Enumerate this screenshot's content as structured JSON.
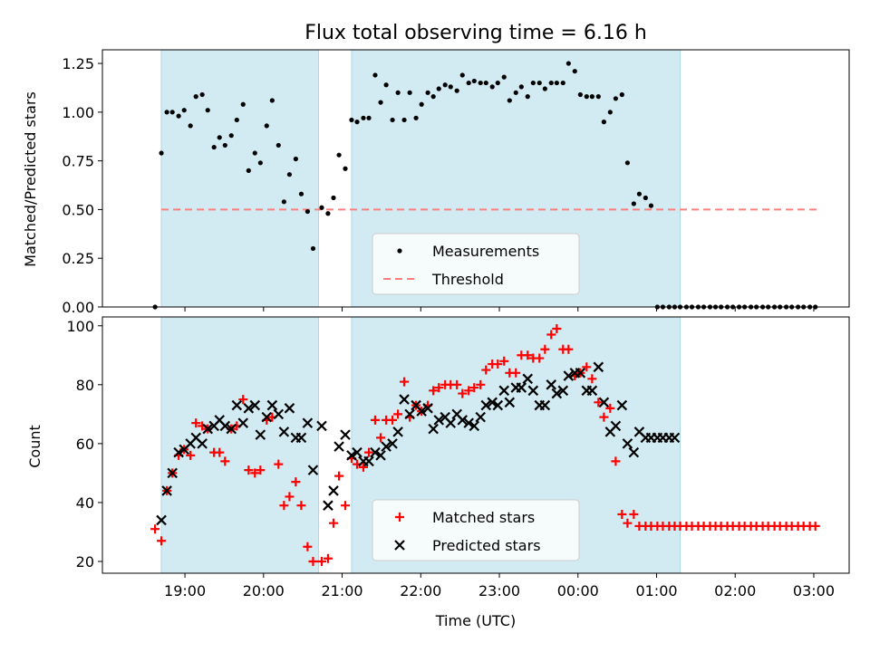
{
  "chart_data": {
    "type": "scatter",
    "title": "Flux total observing time = 6.16 h",
    "xlabel": "Time (UTC)",
    "x_unit": "UTC time of day; values are hours after 00:00 on the first night",
    "x_range": [
      17.95,
      27.45
    ],
    "x_ticks": [
      19,
      20,
      21,
      22,
      23,
      24,
      25,
      26,
      27
    ],
    "x_tick_labels": [
      "19:00",
      "20:00",
      "21:00",
      "22:00",
      "23:00",
      "00:00",
      "01:00",
      "02:00",
      "03:00"
    ],
    "shaded_intervals": [
      [
        18.7,
        20.7
      ],
      [
        21.12,
        25.3
      ]
    ],
    "colors": {
      "shade": "#add8e6",
      "matched": "#ff0000",
      "predicted": "#000000",
      "measurement": "#000000",
      "threshold": "#ff7f7f"
    },
    "panels": [
      {
        "ylabel": "Matched/Predicted stars",
        "ylim": [
          0,
          1.32
        ],
        "y_ticks": [
          0,
          0.25,
          0.5,
          0.75,
          1.0,
          1.25
        ],
        "y_tick_labels": [
          "0.00",
          "0.25",
          "0.50",
          "0.75",
          "1.00",
          "1.25"
        ],
        "legend_position": "lower-center",
        "legend": [
          {
            "label": "Measurements",
            "marker": "dot"
          },
          {
            "label": "Threshold",
            "marker": "dashed-line"
          }
        ],
        "threshold": {
          "value": 0.5,
          "x_range": [
            18.7,
            27.05
          ]
        },
        "series": [
          {
            "name": "Measurements",
            "marker": "dot",
            "x": [
              18.62,
              18.7,
              18.77,
              18.84,
              18.92,
              18.99,
              19.07,
              19.14,
              19.22,
              19.29,
              19.37,
              19.44,
              19.51,
              19.59,
              19.66,
              19.74,
              19.81,
              19.89,
              19.96,
              20.04,
              20.11,
              20.19,
              20.26,
              20.33,
              20.41,
              20.48,
              20.56,
              20.63,
              20.74,
              20.82,
              20.89,
              20.96,
              21.04,
              21.12,
              21.19,
              21.27,
              21.34,
              21.42,
              21.49,
              21.56,
              21.64,
              21.71,
              21.79,
              21.86,
              21.94,
              22.01,
              22.09,
              22.16,
              22.23,
              22.31,
              22.38,
              22.46,
              22.53,
              22.61,
              22.68,
              22.76,
              22.83,
              22.91,
              22.98,
              23.06,
              23.13,
              23.21,
              23.28,
              23.36,
              23.43,
              23.51,
              23.58,
              23.66,
              23.73,
              23.81,
              23.88,
              23.96,
              24.03,
              24.11,
              24.18,
              24.26,
              24.33,
              24.41,
              24.48,
              24.56,
              24.63,
              24.71,
              24.78,
              24.86,
              24.93,
              25.01,
              25.08,
              25.16,
              25.23,
              25.3,
              25.38,
              25.45,
              25.53,
              25.6,
              25.68,
              25.75,
              25.82,
              25.9,
              25.97,
              26.05,
              26.12,
              26.2,
              26.27,
              26.35,
              26.42,
              26.5,
              26.57,
              26.65,
              26.72,
              26.8,
              26.87,
              26.95,
              27.02
            ],
            "y": [
              0.0,
              0.79,
              1.0,
              1.0,
              0.98,
              1.01,
              0.93,
              1.08,
              1.09,
              1.01,
              0.82,
              0.87,
              0.83,
              0.88,
              0.96,
              1.04,
              0.7,
              0.79,
              0.74,
              0.93,
              1.06,
              0.83,
              0.54,
              0.68,
              0.76,
              0.58,
              0.49,
              0.3,
              0.51,
              0.48,
              0.56,
              0.78,
              0.71,
              0.96,
              0.95,
              0.97,
              0.97,
              1.19,
              1.05,
              1.14,
              0.96,
              1.1,
              0.96,
              1.1,
              0.97,
              1.04,
              1.1,
              1.08,
              1.12,
              1.14,
              1.13,
              1.11,
              1.19,
              1.15,
              1.16,
              1.15,
              1.15,
              1.13,
              1.15,
              1.18,
              1.06,
              1.1,
              1.13,
              1.08,
              1.15,
              1.15,
              1.12,
              1.15,
              1.15,
              1.15,
              1.25,
              1.21,
              1.09,
              1.08,
              1.08,
              1.08,
              0.95,
              1.0,
              1.07,
              1.09,
              0.74,
              0.53,
              0.58,
              0.56,
              0.52,
              0.0,
              0.0,
              0.0,
              0.0,
              0.0,
              0.0,
              0.0,
              0.0,
              0.0,
              0.0,
              0.0,
              0.0,
              0.0,
              0.0,
              0.0,
              0.0,
              0.0,
              0.0,
              0.0,
              0.0,
              0.0,
              0.0,
              0.0,
              0.0,
              0.0,
              0.0,
              0.0,
              0.0
            ]
          }
        ]
      },
      {
        "ylabel": "Count",
        "ylim": [
          16,
          103
        ],
        "y_ticks": [
          20,
          40,
          60,
          80,
          100
        ],
        "y_tick_labels": [
          "20",
          "40",
          "60",
          "80",
          "100"
        ],
        "legend_position": "lower-center",
        "legend": [
          {
            "label": "Matched stars",
            "marker": "plus"
          },
          {
            "label": "Predicted stars",
            "marker": "x"
          }
        ],
        "series": [
          {
            "name": "Matched stars",
            "marker": "plus",
            "x": [
              18.62,
              18.7,
              18.77,
              18.84,
              18.92,
              18.99,
              19.07,
              19.14,
              19.22,
              19.29,
              19.37,
              19.44,
              19.51,
              19.59,
              19.66,
              19.74,
              19.81,
              19.89,
              19.96,
              20.04,
              20.11,
              20.19,
              20.26,
              20.33,
              20.41,
              20.48,
              20.56,
              20.63,
              20.74,
              20.82,
              20.89,
              20.96,
              21.04,
              21.12,
              21.19,
              21.27,
              21.34,
              21.42,
              21.49,
              21.56,
              21.64,
              21.71,
              21.79,
              21.86,
              21.94,
              22.01,
              22.09,
              22.16,
              22.23,
              22.31,
              22.38,
              22.46,
              22.53,
              22.61,
              22.68,
              22.76,
              22.83,
              22.91,
              22.98,
              23.06,
              23.13,
              23.21,
              23.28,
              23.36,
              23.43,
              23.51,
              23.58,
              23.66,
              23.73,
              23.81,
              23.88,
              23.96,
              24.03,
              24.11,
              24.18,
              24.26,
              24.33,
              24.41,
              24.48,
              24.56,
              24.63,
              24.71,
              24.78,
              24.86,
              24.93,
              25.01,
              25.08,
              25.16,
              25.23,
              25.3,
              25.38,
              25.45,
              25.53,
              25.6,
              25.68,
              25.75,
              25.82,
              25.9,
              25.97,
              26.05,
              26.12,
              26.2,
              26.27,
              26.35,
              26.42,
              26.5,
              26.57,
              26.65,
              26.72,
              26.8,
              26.87,
              26.95,
              27.02
            ],
            "y": [
              31,
              27,
              44,
              50,
              56,
              58,
              56,
              67,
              66,
              65,
              57,
              57,
              54,
              65,
              66,
              75,
              51,
              50,
              51,
              68,
              69,
              53,
              39,
              42,
              47,
              39,
              25,
              20,
              20,
              21,
              33,
              49,
              39,
              55,
              53,
              52,
              57,
              68,
              62,
              68,
              68,
              70,
              81,
              69,
              73,
              71,
              73,
              78,
              79,
              80,
              80,
              80,
              77,
              78,
              79,
              80,
              85,
              87,
              87,
              88,
              84,
              84,
              90,
              90,
              89,
              89,
              92,
              97,
              99,
              92,
              92,
              83,
              84,
              86,
              82,
              74,
              69,
              72,
              54,
              36,
              33,
              36,
              32,
              32,
              32,
              32,
              32,
              32,
              32,
              32,
              32,
              32,
              32,
              32,
              32,
              32,
              32,
              32,
              32,
              32,
              32,
              32,
              32,
              32,
              32,
              32,
              32,
              32,
              32,
              32,
              32,
              32,
              32
            ]
          },
          {
            "name": "Predicted stars",
            "marker": "x",
            "x": [
              18.7,
              18.77,
              18.84,
              18.92,
              18.99,
              19.07,
              19.14,
              19.22,
              19.29,
              19.37,
              19.44,
              19.51,
              19.59,
              19.66,
              19.74,
              19.81,
              19.89,
              19.96,
              20.04,
              20.11,
              20.19,
              20.26,
              20.33,
              20.41,
              20.48,
              20.56,
              20.63,
              20.74,
              20.82,
              20.89,
              20.96,
              21.04,
              21.12,
              21.19,
              21.27,
              21.34,
              21.42,
              21.49,
              21.56,
              21.64,
              21.71,
              21.79,
              21.86,
              21.94,
              22.01,
              22.09,
              22.16,
              22.23,
              22.31,
              22.38,
              22.46,
              22.53,
              22.61,
              22.68,
              22.76,
              22.83,
              22.91,
              22.98,
              23.06,
              23.13,
              23.21,
              23.28,
              23.36,
              23.43,
              23.51,
              23.58,
              23.66,
              23.73,
              23.81,
              23.88,
              23.96,
              24.03,
              24.11,
              24.18,
              24.26,
              24.33,
              24.41,
              24.48,
              24.56,
              24.63,
              24.71,
              24.78,
              24.86,
              24.93,
              25.01,
              25.08,
              25.16,
              25.23
            ],
            "y": [
              34,
              44,
              50,
              57,
              58,
              60,
              62,
              60,
              65,
              66,
              68,
              66,
              65,
              73,
              67,
              72,
              73,
              63,
              69,
              73,
              70,
              64,
              72,
              62,
              62,
              67,
              51,
              66,
              39,
              44,
              59,
              63,
              56,
              57,
              54,
              54,
              57,
              56,
              59,
              60,
              64,
              75,
              70,
              73,
              71,
              72,
              65,
              68,
              69,
              67,
              70,
              68,
              67,
              66,
              69,
              73,
              74,
              73,
              78,
              74,
              79,
              79,
              82,
              78,
              73,
              73,
              80,
              77,
              78,
              83,
              84,
              84,
              78,
              78,
              86,
              74,
              64,
              66,
              73,
              60,
              57,
              64,
              62,
              62,
              62,
              62,
              62,
              62
            ]
          }
        ]
      }
    ]
  }
}
